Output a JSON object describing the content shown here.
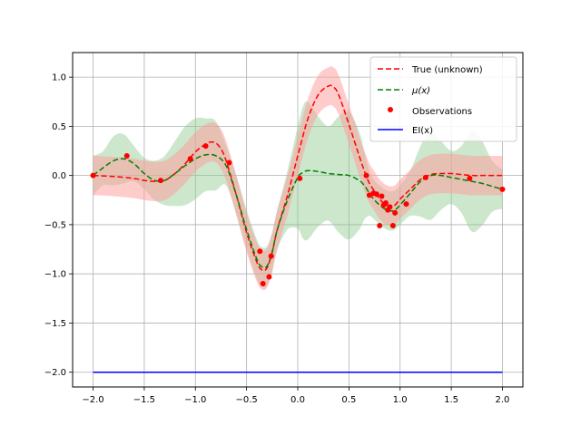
{
  "chart_data": {
    "type": "line",
    "xlim": [
      -2.2,
      2.2
    ],
    "ylim": [
      -2.15,
      1.25
    ],
    "xticks": [
      -2.0,
      -1.5,
      -1.0,
      -0.5,
      0.0,
      0.5,
      1.0,
      1.5,
      2.0
    ],
    "xtick_labels": [
      "−2.0",
      "−1.5",
      "−1.0",
      "−0.5",
      "0.0",
      "0.5",
      "1.0",
      "1.5",
      "2.0"
    ],
    "yticks": [
      1.0,
      0.5,
      0.0,
      -0.5,
      -1.0,
      -1.5,
      -2.0
    ],
    "ytick_labels": [
      "1.0",
      "0.5",
      "0.0",
      "−0.5",
      "−1.0",
      "−1.5",
      "−2.0"
    ],
    "grid": true,
    "legend_position": "top-right",
    "colors": {
      "true": "#ff0000",
      "mu": "#008000",
      "observations": "#ff0000",
      "ei": "#0000ff",
      "true_band": "#ff9999",
      "mu_band": "#8fc98f"
    },
    "series": [
      {
        "name": "True (unknown)",
        "style": "dashed",
        "x": [
          -2.0,
          -1.8,
          -1.6,
          -1.5,
          -1.4,
          -1.3,
          -1.2,
          -1.1,
          -1.0,
          -0.9,
          -0.85,
          -0.8,
          -0.75,
          -0.7,
          -0.6,
          -0.5,
          -0.4,
          -0.35,
          -0.3,
          -0.25,
          -0.2,
          -0.1,
          0.0,
          0.1,
          0.2,
          0.3,
          0.35,
          0.4,
          0.5,
          0.6,
          0.65,
          0.7,
          0.75,
          0.8,
          0.85,
          0.9,
          0.95,
          1.0,
          1.1,
          1.2,
          1.3,
          1.4,
          1.5,
          1.6,
          1.7,
          1.8,
          2.0
        ],
        "values": [
          0.0,
          -0.01,
          -0.03,
          -0.05,
          -0.06,
          -0.05,
          0.02,
          0.12,
          0.24,
          0.32,
          0.34,
          0.33,
          0.27,
          0.15,
          -0.2,
          -0.58,
          -0.88,
          -0.96,
          -0.94,
          -0.78,
          -0.55,
          -0.2,
          0.2,
          0.58,
          0.82,
          0.91,
          0.9,
          0.82,
          0.52,
          0.2,
          0.05,
          -0.08,
          -0.16,
          -0.24,
          -0.29,
          -0.31,
          -0.3,
          -0.24,
          -0.14,
          -0.04,
          0.01,
          0.02,
          0.02,
          0.01,
          0.0,
          0.0,
          0.0
        ],
        "band_upper": [
          0.2,
          0.19,
          0.17,
          0.15,
          0.14,
          0.15,
          0.22,
          0.32,
          0.44,
          0.52,
          0.54,
          0.53,
          0.47,
          0.35,
          0.0,
          -0.38,
          -0.68,
          -0.76,
          -0.74,
          -0.58,
          -0.35,
          0.0,
          0.4,
          0.78,
          1.02,
          1.1,
          1.1,
          1.02,
          0.72,
          0.4,
          0.25,
          0.12,
          0.04,
          -0.04,
          -0.09,
          -0.11,
          -0.1,
          -0.04,
          0.06,
          0.16,
          0.21,
          0.22,
          0.22,
          0.21,
          0.2,
          0.2,
          0.2
        ],
        "band_lower": [
          -0.2,
          -0.21,
          -0.23,
          -0.25,
          -0.26,
          -0.25,
          -0.18,
          -0.08,
          0.04,
          0.12,
          0.14,
          0.13,
          0.07,
          -0.05,
          -0.4,
          -0.78,
          -1.08,
          -1.16,
          -1.14,
          -0.98,
          -0.75,
          -0.4,
          0.0,
          0.38,
          0.62,
          0.71,
          0.7,
          0.62,
          0.32,
          0.0,
          -0.15,
          -0.28,
          -0.36,
          -0.44,
          -0.49,
          -0.51,
          -0.5,
          -0.44,
          -0.34,
          -0.24,
          -0.19,
          -0.18,
          -0.18,
          -0.19,
          -0.2,
          -0.2,
          -0.2
        ]
      },
      {
        "name": "μ(x)",
        "style": "dashed",
        "x": [
          -2.0,
          -1.9,
          -1.8,
          -1.7,
          -1.6,
          -1.5,
          -1.4,
          -1.3,
          -1.2,
          -1.1,
          -1.0,
          -0.9,
          -0.8,
          -0.7,
          -0.6,
          -0.5,
          -0.4,
          -0.35,
          -0.3,
          -0.25,
          -0.2,
          -0.1,
          0.0,
          0.05,
          0.1,
          0.2,
          0.3,
          0.4,
          0.5,
          0.6,
          0.65,
          0.7,
          0.75,
          0.8,
          0.85,
          0.9,
          0.95,
          1.0,
          1.1,
          1.2,
          1.3,
          1.4,
          1.5,
          1.6,
          1.7,
          1.8,
          1.9,
          2.0
        ],
        "values": [
          0.0,
          0.08,
          0.15,
          0.17,
          0.12,
          0.02,
          -0.05,
          -0.05,
          0.02,
          0.1,
          0.17,
          0.21,
          0.2,
          0.1,
          -0.2,
          -0.55,
          -0.85,
          -0.93,
          -0.92,
          -0.78,
          -0.55,
          -0.25,
          -0.02,
          0.03,
          0.05,
          0.04,
          0.02,
          0.01,
          0.0,
          -0.05,
          -0.1,
          -0.18,
          -0.25,
          -0.3,
          -0.34,
          -0.36,
          -0.35,
          -0.3,
          -0.18,
          -0.06,
          0.0,
          0.0,
          -0.02,
          -0.04,
          -0.06,
          -0.08,
          -0.11,
          -0.14
        ],
        "band_upper": [
          0.2,
          0.25,
          0.4,
          0.42,
          0.3,
          0.18,
          0.15,
          0.2,
          0.35,
          0.5,
          0.58,
          0.58,
          0.55,
          0.3,
          0.0,
          -0.35,
          -0.65,
          -0.73,
          -0.72,
          -0.58,
          -0.35,
          0.05,
          0.5,
          0.7,
          0.75,
          0.6,
          0.5,
          0.6,
          0.65,
          0.45,
          0.25,
          0.05,
          -0.05,
          -0.1,
          -0.14,
          -0.16,
          -0.15,
          -0.1,
          0.05,
          0.3,
          0.45,
          0.35,
          0.25,
          0.3,
          0.45,
          0.35,
          0.15,
          0.06
        ],
        "band_lower": [
          -0.2,
          -0.1,
          -0.1,
          -0.08,
          -0.06,
          -0.14,
          -0.25,
          -0.3,
          -0.31,
          -0.3,
          -0.24,
          -0.16,
          -0.15,
          -0.1,
          -0.4,
          -0.75,
          -1.05,
          -1.13,
          -1.12,
          -0.98,
          -0.75,
          -0.55,
          -0.54,
          -0.64,
          -0.65,
          -0.52,
          -0.46,
          -0.58,
          -0.65,
          -0.55,
          -0.45,
          -0.41,
          -0.45,
          -0.5,
          -0.54,
          -0.56,
          -0.55,
          -0.5,
          -0.41,
          -0.42,
          -0.45,
          -0.35,
          -0.29,
          -0.38,
          -0.57,
          -0.51,
          -0.37,
          -0.34
        ]
      },
      {
        "name": "Observations",
        "style": "markers",
        "x": [
          -2.0,
          -1.67,
          -1.34,
          -1.05,
          -0.9,
          -0.67,
          -0.37,
          -0.34,
          -0.28,
          -0.26,
          0.02,
          0.67,
          0.7,
          0.74,
          0.77,
          0.8,
          0.82,
          0.84,
          0.86,
          0.88,
          0.9,
          0.93,
          0.95,
          1.06,
          1.25,
          1.68,
          2.0
        ],
        "values": [
          0.0,
          0.2,
          -0.05,
          0.17,
          0.3,
          0.13,
          -0.77,
          -1.1,
          -1.03,
          -0.82,
          -0.03,
          0.0,
          -0.2,
          -0.18,
          -0.19,
          -0.51,
          -0.21,
          -0.3,
          -0.28,
          -0.35,
          -0.32,
          -0.51,
          -0.38,
          -0.29,
          -0.02,
          -0.03,
          -0.14
        ]
      },
      {
        "name": "EI(x)",
        "style": "solid",
        "x": [
          -2.0,
          2.0
        ],
        "values": [
          -2.0,
          -2.0
        ]
      }
    ],
    "legend": {
      "entries": [
        "True (unknown)",
        "μ(x)",
        "Observations",
        "EI(x)"
      ]
    }
  }
}
